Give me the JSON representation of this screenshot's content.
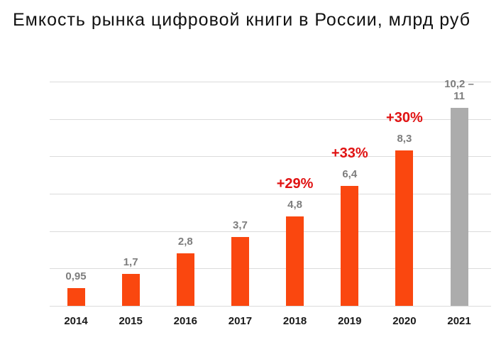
{
  "title": "Емкость рынка цифровой книги в России, млрд руб",
  "colors": {
    "background": "#ffffff",
    "bar": "#fa470f",
    "bar_forecast": "#acacac",
    "value_label": "#7d7d7d",
    "growth_label": "#e01212",
    "axis_label": "#1a1a1a",
    "gridline": "#dbdbdb",
    "title": "#111111"
  },
  "chart_data": {
    "type": "bar",
    "title": "Емкость рынка цифровой книги в России, млрд руб",
    "categories": [
      "2014",
      "2015",
      "2016",
      "2017",
      "2018",
      "2019",
      "2020",
      "2021"
    ],
    "values": [
      0.95,
      1.7,
      2.8,
      3.7,
      4.8,
      6.4,
      8.3,
      10.6
    ],
    "value_labels": [
      "0,95",
      "1,7",
      "2,8",
      "3,7",
      "4,8",
      "6,4",
      "8,3",
      "10,2 –\n11"
    ],
    "growth_annotations": [
      {
        "category": "2018",
        "label": "+29%"
      },
      {
        "category": "2019",
        "label": "+33%"
      },
      {
        "category": "2020",
        "label": "+30%"
      }
    ],
    "forecast_categories": [
      "2021"
    ],
    "forecast_range_2021": [
      10.2,
      11
    ],
    "xlabel": "",
    "ylabel": "",
    "ylim": [
      0,
      12
    ],
    "gridline_step": 2,
    "grid": true,
    "legend": false,
    "y_tick_labels_visible": false
  }
}
